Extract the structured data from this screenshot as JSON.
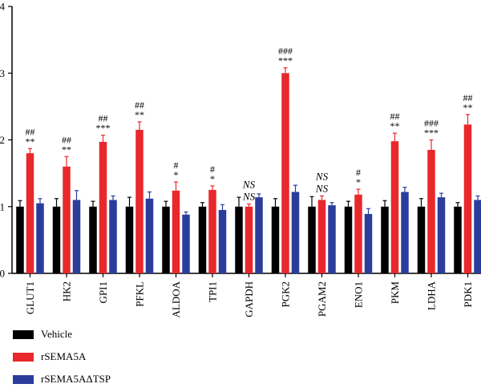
{
  "chart_data": {
    "type": "bar",
    "categories": [
      "GLUT1",
      "HK2",
      "GPI1",
      "PFKL",
      "ALDOA",
      "TPI1",
      "GAPDH",
      "PGK2",
      "PGAM2",
      "ENO1",
      "PKM",
      "LDHA",
      "PDK1"
    ],
    "series": [
      {
        "name": "Vehicle",
        "color": "#000000",
        "values": [
          1.0,
          1.0,
          1.0,
          1.0,
          1.0,
          1.0,
          1.0,
          1.0,
          1.0,
          1.0,
          1.0,
          1.0,
          1.0
        ],
        "errors": [
          0.09,
          0.12,
          0.08,
          0.14,
          0.08,
          0.06,
          0.14,
          0.12,
          0.15,
          0.08,
          0.09,
          0.12,
          0.06
        ]
      },
      {
        "name": "rSEMA5A",
        "color": "#e8282b",
        "values": [
          1.8,
          1.6,
          1.97,
          2.15,
          1.24,
          1.25,
          1.0,
          3.0,
          1.1,
          1.18,
          1.98,
          1.85,
          2.23
        ],
        "errors": [
          0.07,
          0.15,
          0.1,
          0.12,
          0.13,
          0.06,
          0.04,
          0.08,
          0.06,
          0.08,
          0.12,
          0.15,
          0.15
        ]
      },
      {
        "name": "rSEMA5AΔTSP",
        "color": "#2b3d9b",
        "values": [
          1.05,
          1.1,
          1.1,
          1.12,
          0.88,
          0.95,
          1.14,
          1.22,
          1.02,
          0.89,
          1.22,
          1.14,
          1.1
        ],
        "errors": [
          0.07,
          0.14,
          0.06,
          0.1,
          0.04,
          0.08,
          0.05,
          0.1,
          0.04,
          0.08,
          0.07,
          0.06,
          0.06
        ]
      }
    ],
    "annotations": [
      [
        "##",
        "**"
      ],
      [
        "##",
        "**"
      ],
      [
        "##",
        "***"
      ],
      [
        "##",
        "**"
      ],
      [
        "#",
        "*"
      ],
      [
        "#",
        "*"
      ],
      [
        "NS",
        "NS"
      ],
      [
        "###",
        "***"
      ],
      [
        "NS",
        "NS"
      ],
      [
        "#",
        "*"
      ],
      [
        "##",
        "**"
      ],
      [
        "###",
        "***"
      ],
      [
        "##",
        "**"
      ]
    ],
    "ylim": [
      0,
      4
    ],
    "yticks": [
      "0",
      "1",
      "2",
      "3",
      "4"
    ],
    "legend_position": "bottom-left"
  }
}
